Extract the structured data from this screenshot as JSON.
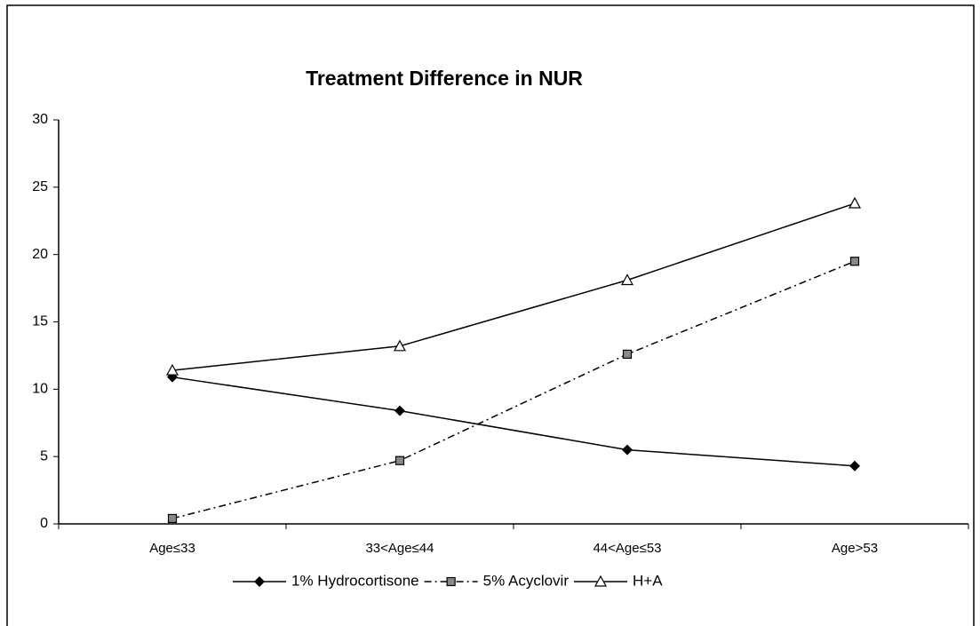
{
  "chart_data": {
    "type": "line",
    "title": "Treatment Difference in NUR",
    "categories": [
      "Age≤33",
      "33<Age≤44",
      "44<Age≤53",
      "Age>53"
    ],
    "series": [
      {
        "name": "1% Hydrocortisone",
        "color": "#000000",
        "marker": "diamond",
        "line_style": "solid",
        "values": [
          10.9,
          8.4,
          5.5,
          4.3
        ]
      },
      {
        "name": "5% Acyclovir",
        "color": "#000000",
        "marker": "square",
        "line_style": "dashdot",
        "values": [
          0.4,
          4.7,
          12.6,
          19.5
        ]
      },
      {
        "name": "H+A",
        "color": "#000000",
        "marker": "triangle",
        "line_style": "solid",
        "values": [
          11.4,
          13.2,
          18.1,
          23.8
        ]
      }
    ],
    "ylim": [
      0,
      30
    ],
    "yticks": [
      0,
      5,
      10,
      15,
      20,
      25,
      30
    ],
    "grid": false,
    "legend": "bottom"
  }
}
